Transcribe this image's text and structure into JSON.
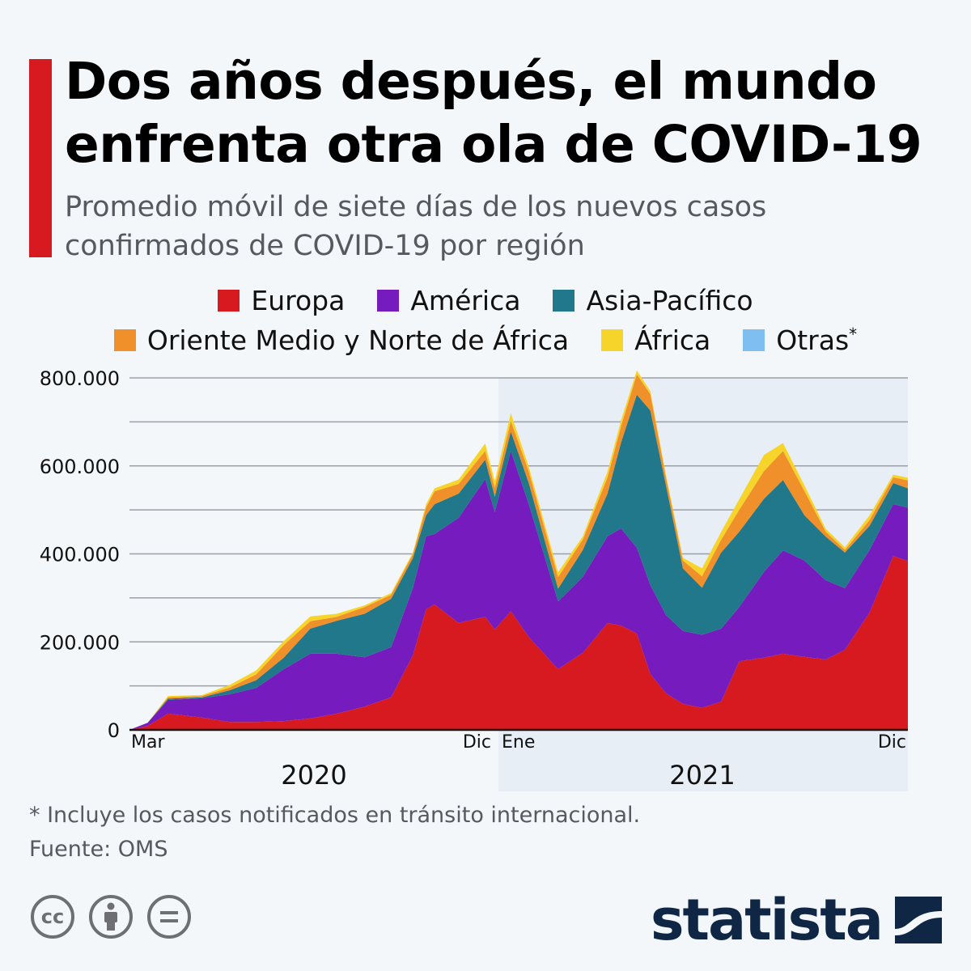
{
  "header": {
    "title": "Dos años después, el mundo enfrenta otra ola de COVID-19",
    "subtitle": "Promedio móvil de siete días de los nuevos casos confirmados de COVID-19 por región",
    "accent_color": "#d71920"
  },
  "legend": [
    {
      "label": "Europa",
      "color": "#d71920"
    },
    {
      "label": "América",
      "color": "#761bbd"
    },
    {
      "label": "Asia-Pacífico",
      "color": "#20788a"
    },
    {
      "label": "Oriente Medio y Norte de África",
      "color": "#f0902a"
    },
    {
      "label": "África",
      "color": "#f7d42a"
    },
    {
      "label": "Otras",
      "color": "#7fbef0",
      "marker": "*"
    }
  ],
  "chart_data": {
    "type": "area",
    "stacked": true,
    "ylim": [
      0,
      800000
    ],
    "y_ticks": [
      0,
      200000,
      400000,
      600000,
      800000
    ],
    "y_tick_labels": [
      "0",
      "200.000",
      "400.000",
      "600.000",
      "800.000"
    ],
    "grid": true,
    "x_tick_labels": [
      "Mar",
      "Dic",
      "Ene",
      "Dic"
    ],
    "x_group_labels": [
      "2020",
      "2021"
    ],
    "shaded_period": [
      "2021-01-01",
      "2021-12-31"
    ],
    "legend_position": "top",
    "x": [
      "2020-03-01",
      "2020-03-16",
      "2020-04-02",
      "2020-04-30",
      "2020-05-23",
      "2020-06-14",
      "2020-07-07",
      "2020-07-29",
      "2020-08-20",
      "2020-09-12",
      "2020-10-04",
      "2020-10-22",
      "2020-11-02",
      "2020-11-09",
      "2020-11-29",
      "2020-12-21",
      "2020-12-29",
      "2021-01-12",
      "2021-01-28",
      "2021-02-23",
      "2021-03-17",
      "2021-04-08",
      "2021-04-20",
      "2021-05-04",
      "2021-05-16",
      "2021-05-30",
      "2021-06-14",
      "2021-07-01",
      "2021-07-18",
      "2021-08-03",
      "2021-08-25",
      "2021-09-11",
      "2021-09-30",
      "2021-10-19",
      "2021-11-05",
      "2021-11-27",
      "2021-12-18",
      "2021-12-31"
    ],
    "series": [
      {
        "name": "Europa",
        "values": [
          0,
          9,
          37,
          28,
          18,
          18,
          20,
          26,
          37,
          53,
          74,
          169,
          274,
          285,
          243,
          257,
          228,
          270,
          211,
          138,
          175,
          243,
          237,
          219,
          127,
          83,
          59,
          50,
          64,
          156,
          164,
          173,
          166,
          160,
          182,
          267,
          395,
          384
        ]
      },
      {
        "name": "América",
        "values": [
          0,
          7,
          31,
          44,
          63,
          77,
          118,
          147,
          136,
          112,
          114,
          153,
          166,
          160,
          239,
          313,
          267,
          364,
          302,
          154,
          173,
          197,
          221,
          195,
          202,
          178,
          166,
          166,
          166,
          123,
          195,
          235,
          219,
          180,
          140,
          142,
          118,
          121
        ]
      },
      {
        "name": "Asia-Pacífico",
        "values": [
          0,
          0,
          3,
          2,
          9,
          18,
          26,
          57,
          75,
          99,
          110,
          68,
          48,
          68,
          55,
          44,
          35,
          44,
          48,
          29,
          61,
          97,
          195,
          348,
          397,
          294,
          142,
          107,
          173,
          171,
          166,
          160,
          103,
          99,
          81,
          55,
          48,
          44
        ]
      },
      {
        "name": "Oriente Medio y Norte de África",
        "values": [
          0,
          0,
          3,
          3,
          6,
          13,
          29,
          17,
          9,
          15,
          9,
          9,
          18,
          29,
          22,
          20,
          20,
          24,
          26,
          26,
          24,
          37,
          37,
          46,
          37,
          18,
          18,
          26,
          29,
          50,
          63,
          66,
          55,
          11,
          6,
          13,
          13,
          18
        ]
      },
      {
        "name": "África",
        "values": [
          0,
          0,
          3,
          2,
          6,
          9,
          9,
          11,
          7,
          4,
          4,
          4,
          7,
          7,
          10,
          17,
          15,
          18,
          11,
          11,
          7,
          13,
          13,
          9,
          7,
          6,
          6,
          18,
          18,
          24,
          37,
          18,
          13,
          7,
          6,
          11,
          6,
          6
        ]
      },
      {
        "name": "Otras",
        "values": [
          0,
          0,
          0,
          0,
          0,
          0,
          0,
          0,
          0,
          0,
          0,
          0,
          0,
          0,
          0,
          0,
          0,
          0,
          0,
          0,
          0,
          0,
          0,
          0,
          0,
          0,
          0,
          0,
          0,
          0,
          0,
          0,
          0,
          0,
          0,
          0,
          0,
          0
        ]
      }
    ],
    "value_unit_multiplier": 1000
  },
  "footer": {
    "note": "* Incluye los casos notificados en tránsito internacional.",
    "source": "Fuente: OMS",
    "brand": "statista",
    "license_icons": [
      "cc-icon",
      "attribution-icon",
      "no-derivatives-icon"
    ]
  }
}
